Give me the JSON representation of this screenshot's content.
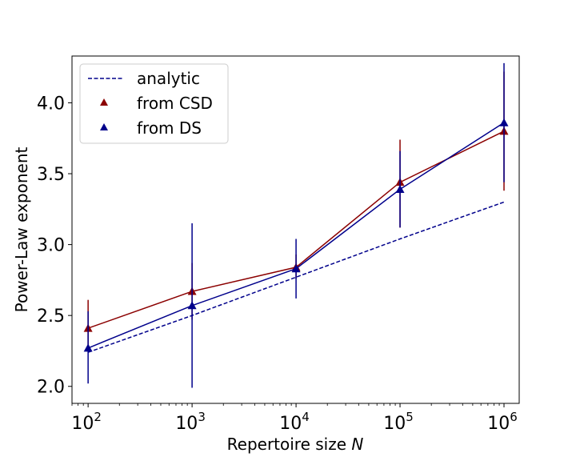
{
  "chart_data": {
    "type": "line",
    "xscale": "log",
    "xlabel": "Repertoire size",
    "xlabel_var": "N",
    "ylabel": "Power-Law exponent",
    "xlim": [
      70,
      1400000
    ],
    "ylim": [
      1.88,
      4.33
    ],
    "x": [
      100,
      1000,
      10000,
      100000,
      1000000
    ],
    "x_tick_labels": [
      {
        "base": "10",
        "exp": "2"
      },
      {
        "base": "10",
        "exp": "3"
      },
      {
        "base": "10",
        "exp": "4"
      },
      {
        "base": "10",
        "exp": "5"
      },
      {
        "base": "10",
        "exp": "6"
      }
    ],
    "y_ticks": [
      2.0,
      2.5,
      3.0,
      3.5,
      4.0
    ],
    "y_tick_labels": [
      "2.0",
      "2.5",
      "3.0",
      "3.5",
      "4.0"
    ],
    "grid": false,
    "legend_position": "top-left",
    "series": [
      {
        "name": "analytic",
        "style": "dashed",
        "color": "#00008b",
        "values": [
          2.24,
          2.5,
          2.77,
          3.04,
          3.3
        ]
      },
      {
        "name": "from CSD",
        "style": "solid-triangle",
        "color": "#8b0000",
        "values": [
          2.41,
          2.67,
          2.84,
          3.44,
          3.8
        ],
        "err_low": [
          2.28,
          2.47,
          2.76,
          3.12,
          3.38
        ],
        "err_high": [
          2.61,
          2.87,
          2.93,
          3.74,
          4.22
        ]
      },
      {
        "name": "from DS",
        "style": "solid-triangle",
        "color": "#00008b",
        "values": [
          2.27,
          2.57,
          2.83,
          3.39,
          3.86
        ],
        "err_low": [
          2.02,
          1.99,
          2.62,
          3.12,
          3.44
        ],
        "err_high": [
          2.53,
          3.15,
          3.04,
          3.66,
          4.28
        ]
      }
    ]
  }
}
